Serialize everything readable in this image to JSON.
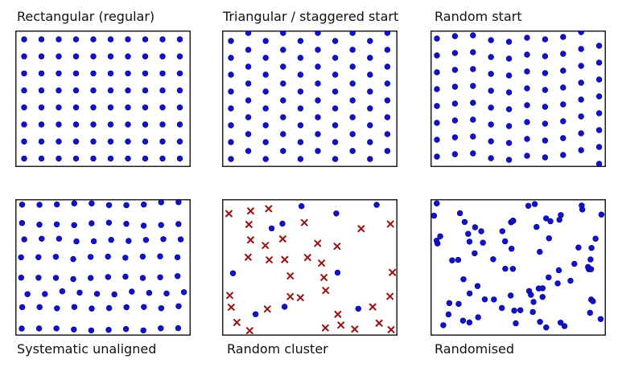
{
  "colors": {
    "dot": "#1111cc",
    "dot_stroke": "#00007a",
    "cross": "#9a1010",
    "frame": "#222222"
  },
  "icon_names": {
    "sample_point": "dot-icon",
    "cluster_point": "cross-icon"
  },
  "panels": [
    {
      "id": "rect",
      "caption": "Rectangular (regular)"
    },
    {
      "id": "tri",
      "caption": "Triangular / staggered start"
    },
    {
      "id": "rstart",
      "caption": "Random start"
    },
    {
      "id": "sysun",
      "caption": "Systematic unaligned"
    },
    {
      "id": "cluster",
      "caption": "Random cluster"
    },
    {
      "id": "rand",
      "caption": "Randomised"
    }
  ]
}
